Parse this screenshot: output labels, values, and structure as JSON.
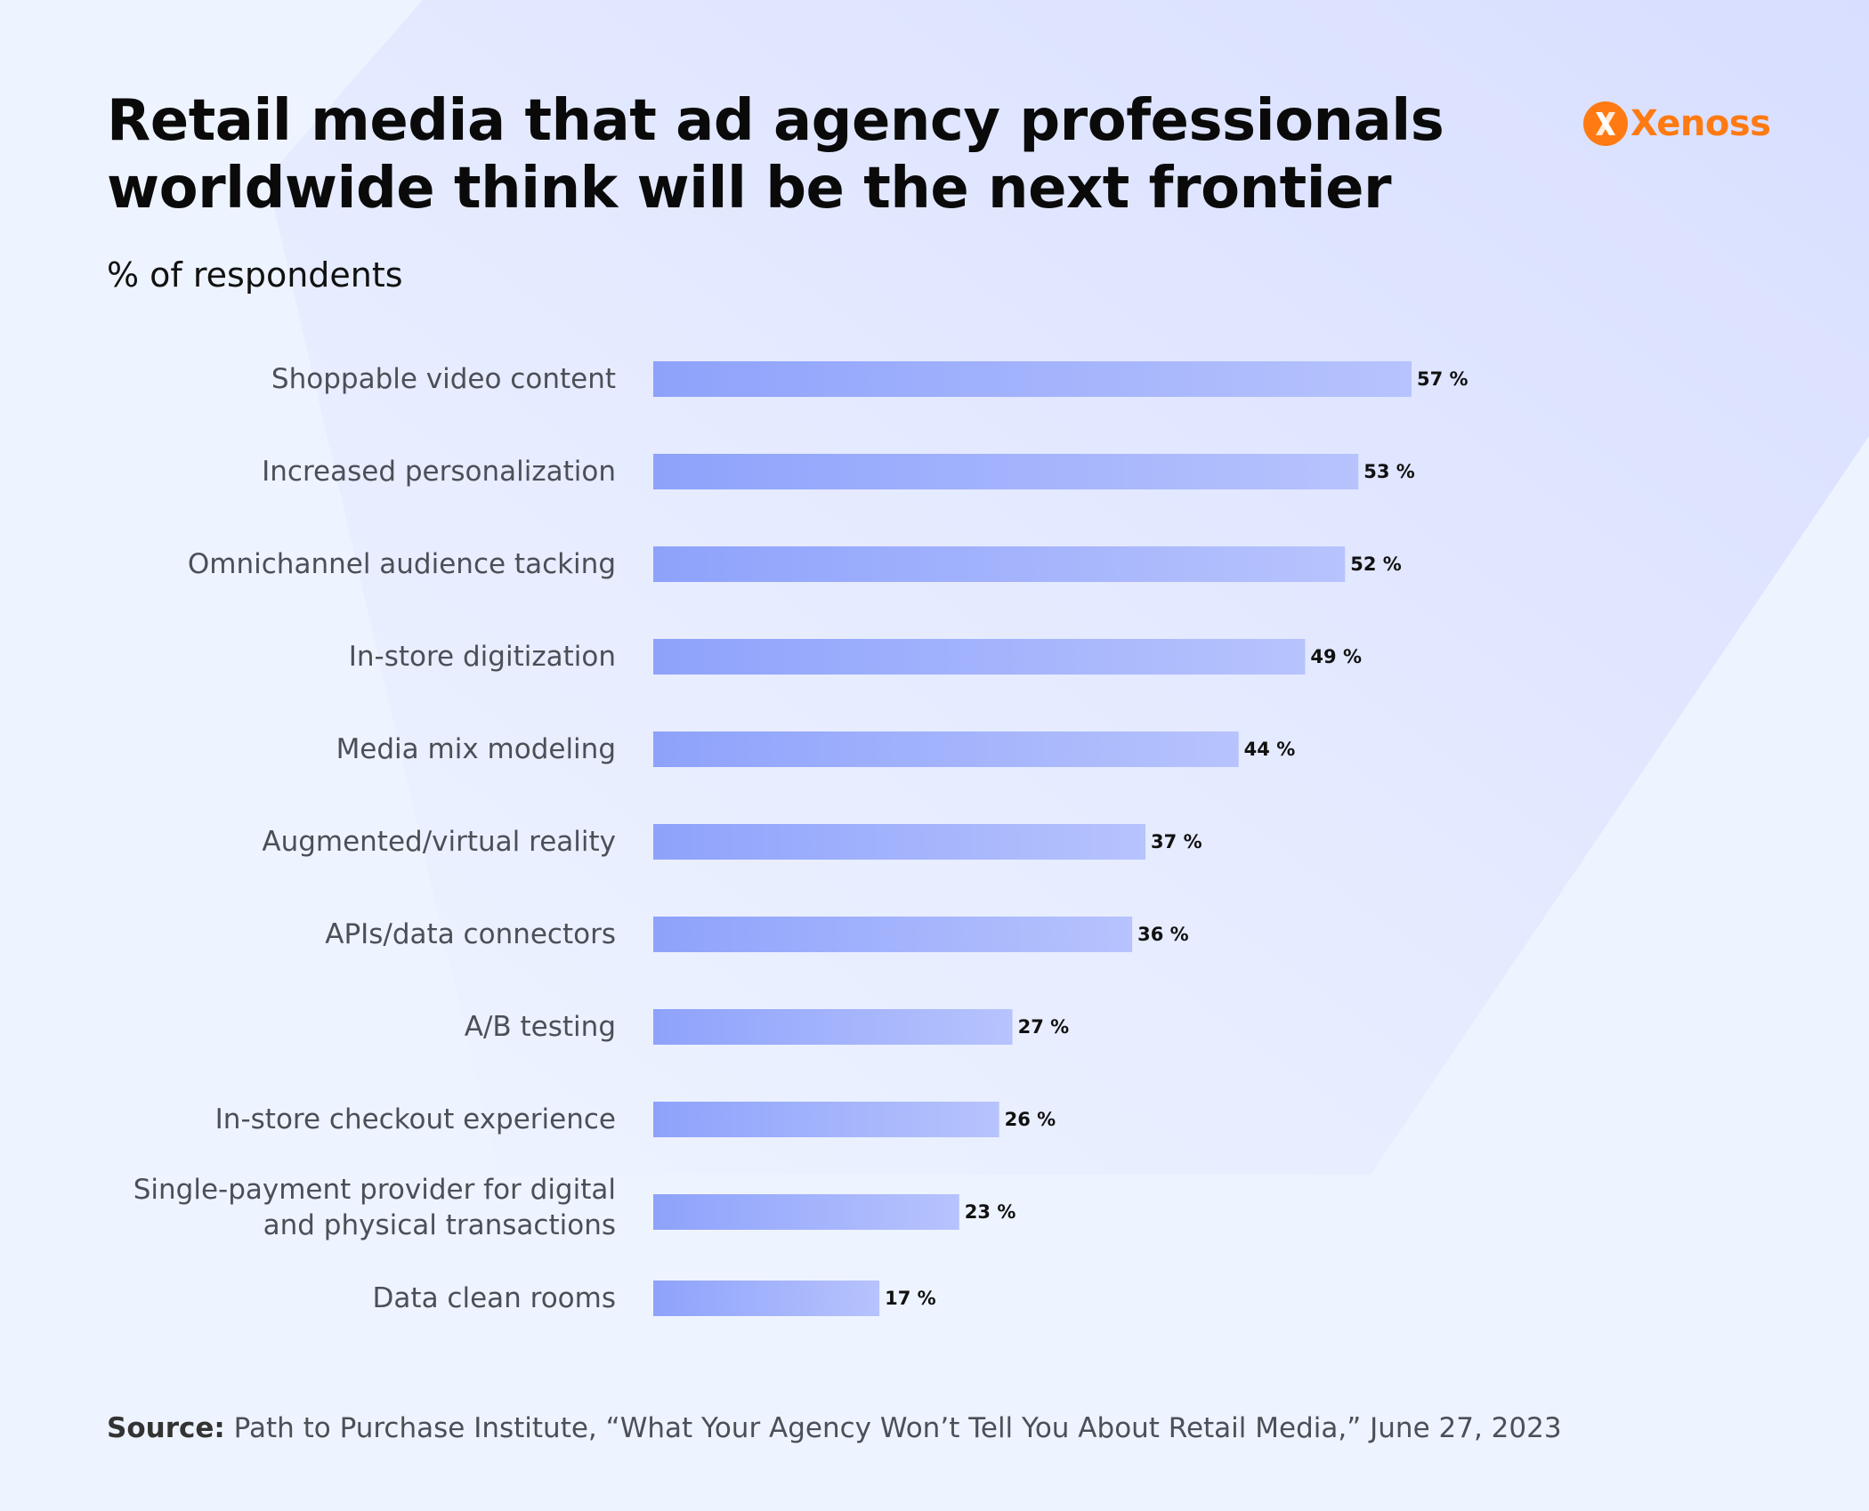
{
  "colors": {
    "background": "#eef4ff",
    "bar_start": "#8ea2fb",
    "bar_end": "#b7c3fd",
    "logo_accent": "#ff7a12",
    "title": "#0a0a0a",
    "label": "#4b4f57"
  },
  "brand": {
    "name": "Xenoss",
    "icon": "x-logo-icon"
  },
  "chart_data": {
    "type": "bar",
    "orientation": "horizontal",
    "title_lines": [
      "Retail media that ad agency professionals",
      "worldwide think will be the next frontier"
    ],
    "subtitle": "% of respondents",
    "value_suffix": " %",
    "xlim": [
      0,
      57
    ],
    "grid": false,
    "legend": "none",
    "categories": [
      [
        "Shoppable video content"
      ],
      [
        "Increased personalization"
      ],
      [
        "Omnichannel audience tacking"
      ],
      [
        "In-store digitization"
      ],
      [
        "Media mix modeling"
      ],
      [
        "Augmented/virtual reality"
      ],
      [
        "APIs/data connectors"
      ],
      [
        "A/B testing"
      ],
      [
        "In-store checkout experience"
      ],
      [
        "Single-payment provider for digital",
        "and physical transactions"
      ],
      [
        "Data clean rooms"
      ]
    ],
    "values": [
      57,
      53,
      52,
      49,
      44,
      37,
      36,
      27,
      26,
      23,
      17
    ]
  },
  "source": {
    "label": "Source:",
    "text": "Path to Purchase Institute, “What Your Agency Won’t Tell You About Retail Media,” June 27, 2023"
  }
}
